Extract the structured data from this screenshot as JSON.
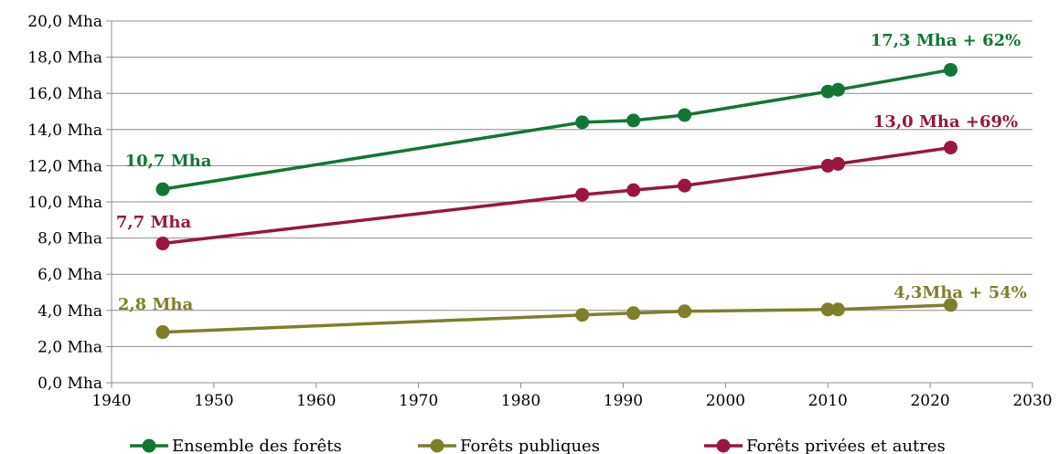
{
  "chart_data": {
    "type": "line",
    "title": "",
    "xlabel": "",
    "ylabel": "",
    "xlim": [
      1940,
      2030
    ],
    "ylim": [
      0,
      20
    ],
    "grid": true,
    "legend_position": "bottom",
    "x_ticks": [
      "1940",
      "1950",
      "1960",
      "1970",
      "1980",
      "1990",
      "2000",
      "2010",
      "2020",
      "2030"
    ],
    "x_tick_values": [
      1940,
      1950,
      1960,
      1970,
      1980,
      1990,
      2000,
      2010,
      2020,
      2030
    ],
    "y_ticks": [
      "0,0 Mha",
      "2,0 Mha",
      "4,0 Mha",
      "6,0 Mha",
      "8,0 Mha",
      "10,0 Mha",
      "12,0 Mha",
      "14,0 Mha",
      "16,0 Mha",
      "18,0 Mha",
      "20,0 Mha"
    ],
    "y_tick_values": [
      0,
      2,
      4,
      6,
      8,
      10,
      12,
      14,
      16,
      18,
      20
    ],
    "series": [
      {
        "name": "Ensemble des forêts",
        "color": "#117733",
        "points": [
          [
            1945,
            10.7
          ],
          [
            1986,
            14.4
          ],
          [
            1991,
            14.5
          ],
          [
            1996,
            14.8
          ],
          [
            2010,
            16.1
          ],
          [
            2011,
            16.2
          ],
          [
            2022,
            17.3
          ]
        ]
      },
      {
        "name": "Forêts publiques",
        "color": "#7f7f2a",
        "points": [
          [
            1945,
            2.8
          ],
          [
            1986,
            3.75
          ],
          [
            1991,
            3.85
          ],
          [
            1996,
            3.95
          ],
          [
            2010,
            4.05
          ],
          [
            2011,
            4.05
          ],
          [
            2022,
            4.3
          ]
        ]
      },
      {
        "name": "Forêts privées et autres",
        "color": "#99163f",
        "points": [
          [
            1945,
            7.7
          ],
          [
            1986,
            10.4
          ],
          [
            1991,
            10.65
          ],
          [
            1996,
            10.9
          ],
          [
            2010,
            12.0
          ],
          [
            2011,
            12.1
          ],
          [
            2022,
            13.0
          ]
        ]
      }
    ],
    "annotations": [
      {
        "text": "17,3 Mha + 62%",
        "color": "#117733"
      },
      {
        "text": "10,7 Mha",
        "color": "#117733"
      },
      {
        "text": "13,0 Mha +69%",
        "color": "#99163f"
      },
      {
        "text": "7,7 Mha",
        "color": "#99163f"
      },
      {
        "text": "4,3Mha + 54%",
        "color": "#7f7f2a"
      },
      {
        "text": "2,8 Mha",
        "color": "#7f7f2a"
      }
    ]
  }
}
